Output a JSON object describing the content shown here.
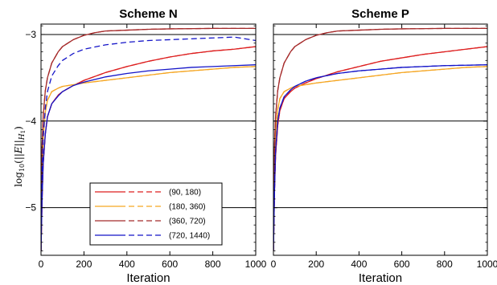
{
  "chart_data": {
    "type": "line",
    "ylabel": "log10(||E||H1)",
    "ylabel_parts": {
      "func": "log",
      "sub": "10",
      "open": "(||",
      "var": "E",
      "mid": "||",
      "space": "H",
      "space_sub": "1",
      "close": ")"
    },
    "ylim": [
      -5.55,
      -2.88
    ],
    "yticks": [
      -3,
      -4,
      -5
    ],
    "ytick_labels": [
      "−3",
      "−4",
      "−5"
    ],
    "hlines": [
      -3,
      -4,
      -5
    ],
    "panels": [
      {
        "title": "Scheme N",
        "xlabel": "Iteration",
        "xlim": [
          0,
          1000
        ],
        "xticks": [
          0,
          200,
          400,
          600,
          800,
          1000
        ],
        "xtick_labels": [
          "0",
          "200",
          "400",
          "600",
          "800",
          "1000"
        ],
        "series": [
          {
            "name": "(90, 180)",
            "color": "#dd1f1f",
            "dashed": false,
            "x": [
              0,
              5,
              10,
              20,
              30,
              50,
              80,
              100,
              150,
              200,
              300,
              400,
              500,
              600,
              700,
              800,
              900,
              1000
            ],
            "y": [
              -5.5,
              -4.9,
              -4.5,
              -4.15,
              -3.95,
              -3.8,
              -3.7,
              -3.66,
              -3.59,
              -3.53,
              -3.44,
              -3.37,
              -3.31,
              -3.26,
              -3.22,
              -3.19,
              -3.17,
              -3.14
            ]
          },
          {
            "name": "(90, 180)",
            "color": "#dd1f1f",
            "dashed": true,
            "x": [
              0,
              5,
              10,
              20,
              30,
              50,
              80,
              100,
              150,
              200,
              300,
              400,
              500,
              600,
              700,
              800,
              900,
              1000
            ],
            "y": [
              -5.5,
              -4.9,
              -4.5,
              -4.15,
              -3.95,
              -3.8,
              -3.7,
              -3.66,
              -3.59,
              -3.53,
              -3.44,
              -3.37,
              -3.31,
              -3.26,
              -3.22,
              -3.19,
              -3.17,
              -3.14
            ]
          },
          {
            "name": "(180, 360)",
            "color": "#f5a623",
            "dashed": false,
            "x": [
              0,
              5,
              10,
              20,
              30,
              50,
              80,
              100,
              200,
              300,
              400,
              500,
              600,
              700,
              800,
              900,
              1000
            ],
            "y": [
              -5.5,
              -4.7,
              -4.2,
              -3.9,
              -3.76,
              -3.66,
              -3.62,
              -3.6,
              -3.56,
              -3.53,
              -3.5,
              -3.47,
              -3.44,
              -3.42,
              -3.4,
              -3.38,
              -3.37
            ]
          },
          {
            "name": "(180, 360)",
            "color": "#f5a623",
            "dashed": true,
            "x": [
              0,
              5,
              10,
              20,
              30,
              50,
              80,
              100,
              200,
              300,
              400,
              500,
              600,
              700,
              800,
              900,
              1000
            ],
            "y": [
              -5.5,
              -4.7,
              -4.2,
              -3.9,
              -3.76,
              -3.66,
              -3.62,
              -3.6,
              -3.56,
              -3.53,
              -3.5,
              -3.47,
              -3.44,
              -3.42,
              -3.4,
              -3.38,
              -3.37
            ]
          },
          {
            "name": "(360, 720)",
            "color": "#a52a2a",
            "dashed": false,
            "x": [
              0,
              5,
              10,
              20,
              30,
              50,
              80,
              100,
              150,
              200,
              250,
              300,
              400,
              500,
              600,
              800,
              1000
            ],
            "y": [
              -5.5,
              -4.3,
              -3.95,
              -3.65,
              -3.5,
              -3.33,
              -3.2,
              -3.14,
              -3.06,
              -3.01,
              -2.98,
              -2.96,
              -2.95,
              -2.94,
              -2.935,
              -2.93,
              -2.93
            ]
          },
          {
            "name": "(360, 720)",
            "color": "#a52a2a",
            "dashed": true,
            "x": [
              0,
              5,
              10,
              20,
              30,
              50,
              80,
              100,
              150,
              200,
              250,
              300,
              400,
              500,
              600,
              800,
              1000
            ],
            "y": [
              -5.5,
              -4.3,
              -3.95,
              -3.65,
              -3.5,
              -3.33,
              -3.2,
              -3.14,
              -3.06,
              -3.01,
              -2.98,
              -2.96,
              -2.95,
              -2.94,
              -2.935,
              -2.93,
              -2.93
            ]
          },
          {
            "name": "(720, 1440)",
            "color": "#1414c8",
            "dashed": false,
            "x": [
              0,
              5,
              10,
              20,
              30,
              50,
              80,
              100,
              150,
              200,
              300,
              400,
              500,
              600,
              700,
              800,
              900,
              1000
            ],
            "y": [
              -5.5,
              -4.9,
              -4.5,
              -4.15,
              -3.95,
              -3.8,
              -3.71,
              -3.66,
              -3.59,
              -3.55,
              -3.49,
              -3.45,
              -3.42,
              -3.4,
              -3.38,
              -3.37,
              -3.36,
              -3.35
            ]
          },
          {
            "name": "(720, 1440)",
            "color": "#1414c8",
            "dashed": true,
            "x": [
              0,
              5,
              10,
              20,
              30,
              50,
              80,
              100,
              150,
              200,
              300,
              400,
              500,
              600,
              700,
              800,
              900,
              1000
            ],
            "y": [
              -5.5,
              -4.6,
              -4.2,
              -3.85,
              -3.66,
              -3.48,
              -3.36,
              -3.3,
              -3.22,
              -3.17,
              -3.12,
              -3.09,
              -3.07,
              -3.06,
              -3.05,
              -3.04,
              -3.03,
              -3.07
            ]
          }
        ],
        "legend": [
          {
            "label": "(90, 180)",
            "color": "#dd1f1f"
          },
          {
            "label": "(180, 360)",
            "color": "#f5a623"
          },
          {
            "label": "(360, 720)",
            "color": "#a52a2a"
          },
          {
            "label": "(720, 1440)",
            "color": "#1414c8"
          }
        ],
        "legend_position": "bottom-center"
      },
      {
        "title": "Scheme P",
        "xlabel": "Iteration",
        "xlim": [
          0,
          1000
        ],
        "xticks": [
          0,
          200,
          400,
          600,
          800,
          1000
        ],
        "xtick_labels": [
          "0",
          "200",
          "400",
          "600",
          "800",
          "1000"
        ],
        "series": [
          {
            "name": "(90, 180)",
            "color": "#dd1f1f",
            "dashed": false,
            "x": [
              0,
              5,
              10,
              20,
              30,
              50,
              80,
              100,
              150,
              200,
              300,
              400,
              500,
              600,
              700,
              800,
              900,
              1000
            ],
            "y": [
              -5.5,
              -4.8,
              -4.4,
              -4.05,
              -3.88,
              -3.74,
              -3.66,
              -3.62,
              -3.56,
              -3.51,
              -3.43,
              -3.37,
              -3.31,
              -3.27,
              -3.23,
              -3.2,
              -3.17,
              -3.14
            ]
          },
          {
            "name": "(90, 180)",
            "color": "#dd1f1f",
            "dashed": true,
            "x": [
              0,
              5,
              10,
              20,
              30,
              50,
              80,
              100,
              150,
              200,
              300,
              400,
              500,
              600,
              700,
              800,
              900,
              1000
            ],
            "y": [
              -5.5,
              -4.8,
              -4.4,
              -4.05,
              -3.88,
              -3.74,
              -3.66,
              -3.62,
              -3.56,
              -3.51,
              -3.43,
              -3.37,
              -3.31,
              -3.27,
              -3.23,
              -3.2,
              -3.17,
              -3.14
            ]
          },
          {
            "name": "(180, 360)",
            "color": "#f5a623",
            "dashed": false,
            "x": [
              0,
              5,
              10,
              20,
              30,
              50,
              80,
              100,
              200,
              300,
              400,
              500,
              600,
              700,
              800,
              900,
              1000
            ],
            "y": [
              -5.5,
              -4.6,
              -4.15,
              -3.87,
              -3.74,
              -3.66,
              -3.62,
              -3.6,
              -3.56,
              -3.53,
              -3.5,
              -3.47,
              -3.44,
              -3.42,
              -3.4,
              -3.38,
              -3.37
            ]
          },
          {
            "name": "(180, 360)",
            "color": "#f5a623",
            "dashed": true,
            "x": [
              0,
              5,
              10,
              20,
              30,
              50,
              80,
              100,
              200,
              300,
              400,
              500,
              600,
              700,
              800,
              900,
              1000
            ],
            "y": [
              -5.5,
              -4.6,
              -4.15,
              -3.87,
              -3.74,
              -3.66,
              -3.62,
              -3.6,
              -3.56,
              -3.53,
              -3.5,
              -3.47,
              -3.44,
              -3.42,
              -3.4,
              -3.38,
              -3.37
            ]
          },
          {
            "name": "(360, 720)",
            "color": "#a52a2a",
            "dashed": false,
            "x": [
              0,
              5,
              10,
              20,
              30,
              50,
              80,
              100,
              150,
              200,
              250,
              300,
              400,
              500,
              600,
              800,
              1000
            ],
            "y": [
              -5.5,
              -4.3,
              -3.95,
              -3.65,
              -3.5,
              -3.33,
              -3.2,
              -3.14,
              -3.06,
              -3.01,
              -2.98,
              -2.96,
              -2.95,
              -2.94,
              -2.935,
              -2.93,
              -2.93
            ]
          },
          {
            "name": "(360, 720)",
            "color": "#a52a2a",
            "dashed": true,
            "x": [
              0,
              5,
              10,
              20,
              30,
              50,
              80,
              100,
              150,
              200,
              250,
              300,
              400,
              500,
              600,
              800,
              1000
            ],
            "y": [
              -5.5,
              -4.3,
              -3.95,
              -3.65,
              -3.5,
              -3.33,
              -3.2,
              -3.14,
              -3.06,
              -3.01,
              -2.98,
              -2.96,
              -2.95,
              -2.94,
              -2.935,
              -2.93,
              -2.93
            ]
          },
          {
            "name": "(720, 1440)",
            "color": "#1414c8",
            "dashed": false,
            "x": [
              0,
              5,
              10,
              20,
              30,
              50,
              80,
              100,
              150,
              200,
              300,
              400,
              500,
              600,
              700,
              800,
              900,
              1000
            ],
            "y": [
              -5.5,
              -4.8,
              -4.35,
              -4.0,
              -3.85,
              -3.72,
              -3.64,
              -3.6,
              -3.54,
              -3.5,
              -3.45,
              -3.42,
              -3.4,
              -3.38,
              -3.37,
              -3.36,
              -3.355,
              -3.35
            ]
          },
          {
            "name": "(720, 1440)",
            "color": "#1414c8",
            "dashed": true,
            "x": [
              0,
              5,
              10,
              20,
              30,
              50,
              80,
              100,
              150,
              200,
              300,
              400,
              500,
              600,
              700,
              800,
              900,
              1000
            ],
            "y": [
              -5.5,
              -4.8,
              -4.35,
              -4.0,
              -3.85,
              -3.72,
              -3.64,
              -3.6,
              -3.54,
              -3.5,
              -3.45,
              -3.42,
              -3.4,
              -3.38,
              -3.37,
              -3.36,
              -3.355,
              -3.35
            ]
          }
        ]
      }
    ]
  }
}
